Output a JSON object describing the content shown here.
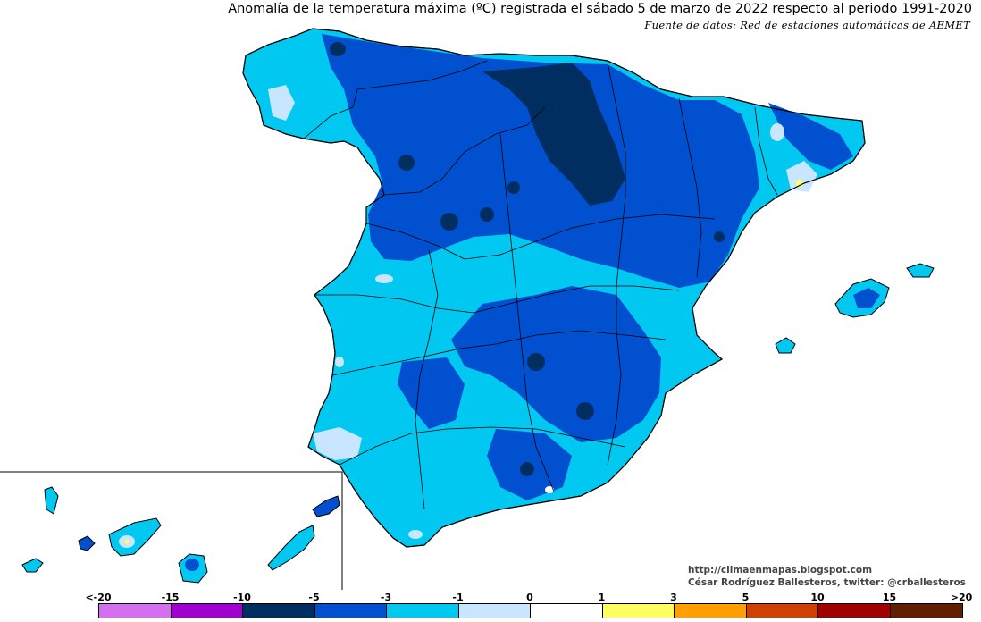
{
  "header": {
    "title": "Anomalía de la temperatura máxima (ºC) registrada el sábado 5 de marzo de 2022 respecto al periodo 1991-2020",
    "source": "Fuente de datos: Red de estaciones automáticas de AEMET"
  },
  "credits": {
    "website": "http://climaenmapas.blogspot.com",
    "author": "César Rodríguez Ballesteros, twitter: @crballesteros"
  },
  "legend": {
    "ticks": [
      "<-20",
      "-15",
      "-10",
      "-5",
      "-3",
      "-1",
      "0",
      "1",
      "3",
      "5",
      "10",
      "15",
      ">20"
    ],
    "colors": [
      "#d470f0",
      "#a000d0",
      "#002e60",
      "#0050d0",
      "#00c8f0",
      "#c8e6ff",
      "#ffffff",
      "#ffff60",
      "#ffa000",
      "#d04000",
      "#a00000",
      "#602000"
    ]
  },
  "colors": {
    "very_cold": "#002e60",
    "cold": "#0050d0",
    "mild_cold": "#00c8f0",
    "slight_cold": "#c8e6ff",
    "neutral": "#ffffff",
    "slight_warm": "#ffff60"
  }
}
